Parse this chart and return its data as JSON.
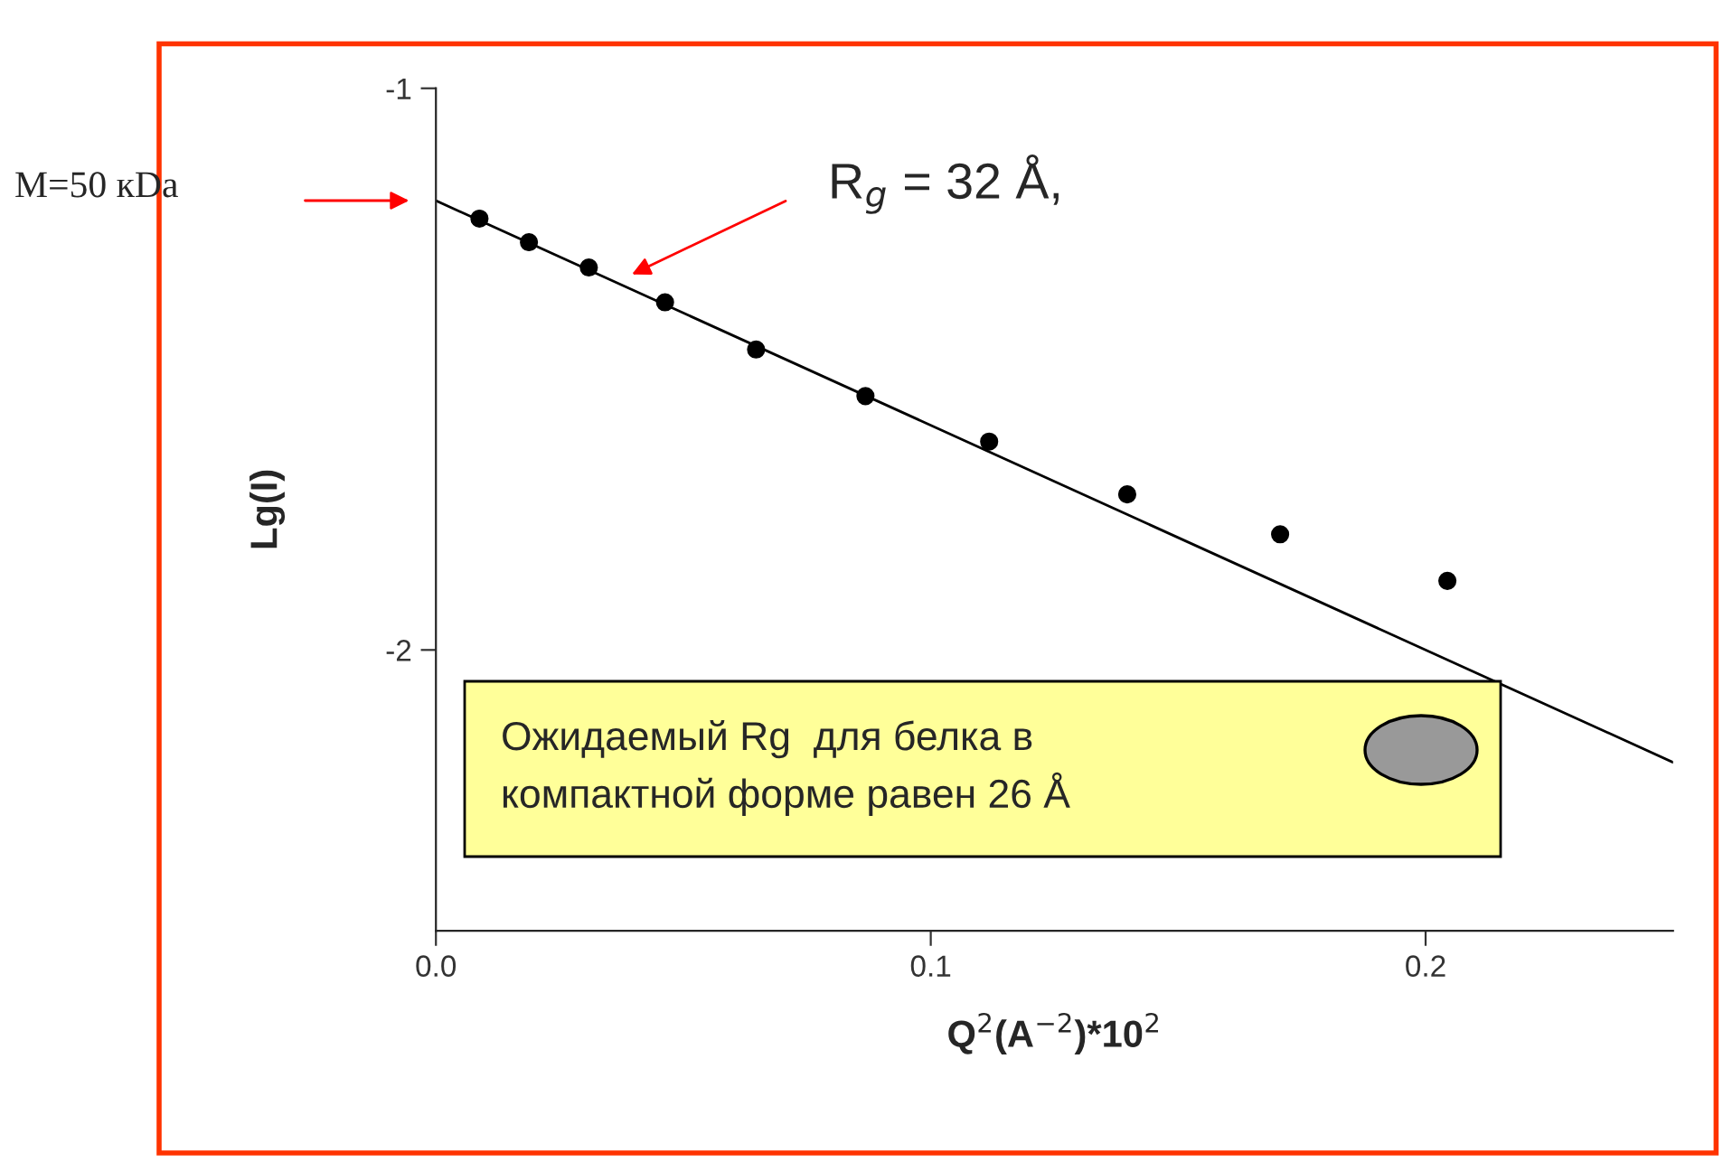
{
  "chart_data": {
    "type": "scatter",
    "xlabel": "Q$^{2}$(A$^{−2}$)*10$^{2}$",
    "ylabel": "Lg(I)",
    "xlim": [
      0,
      0.25
    ],
    "ylim": [
      -2.5,
      -1
    ],
    "xticks": [
      {
        "value": 0,
        "label": "0.0"
      },
      {
        "value": 0.1,
        "label": "0.1"
      },
      {
        "value": 0.2,
        "label": "0.2"
      }
    ],
    "yticks": [
      {
        "value": -1,
        "label": "-1"
      },
      {
        "value": -2,
        "label": "-2"
      }
    ],
    "grid": false,
    "legend": false,
    "series": [
      {
        "marker": "circle",
        "color": "#000000",
        "x": [
          0.0088,
          0.0188,
          0.0309,
          0.0463,
          0.0647,
          0.0868,
          0.1118,
          0.1397,
          0.1706,
          0.2044
        ],
        "values": [
          -1.232,
          -1.274,
          -1.319,
          -1.381,
          -1.465,
          -1.548,
          -1.629,
          -1.723,
          -1.794,
          -1.877
        ]
      },
      {
        "type": "line",
        "color": "#000000",
        "x": [
          0,
          0.25
        ],
        "values": [
          -1.2,
          -2.2
        ]
      }
    ],
    "annotations": [
      "M=50 кDa",
      "R$_{g}$ = 32 Å,",
      "Ожидаемый Rg  для белка в\nкомпактной форме равен 26 Å"
    ]
  }
}
